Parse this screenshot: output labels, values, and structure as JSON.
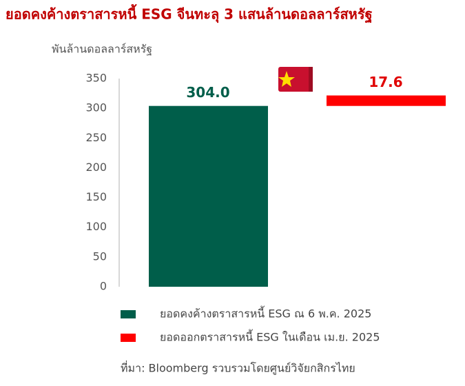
{
  "chart_data": {
    "type": "waterfall",
    "title": "ยอดคงค้างตราสารหนี้ ESG จีนทะลุ 3 แสนล้านดอลลาร์สหรัฐ",
    "y_label": "พันล้านดอลลาร์สหรัฐ",
    "categories": [
      null,
      null
    ],
    "series": [
      {
        "name": "ยอดคงค้างตราสารหนี้ ESG ณ 6 พ.ค. 2025",
        "color": "#005e4a",
        "values": [
          304.0,
          null
        ],
        "value_labels": [
          "304.0",
          null
        ]
      },
      {
        "name": "ยอดออกตราสารหนี้ ESG ในเดือน เม.ย. 2025",
        "color": "#ff0000",
        "values": [
          null,
          17.6
        ]
      }
    ],
    "ylim": [
      0,
      350
    ],
    "yticks": [
      0,
      50,
      100,
      150,
      200,
      250,
      300,
      350
    ],
    "source": "ที่มา: Bloomberg รวบรวมโดยศูนย์วิจัยกสิกรไทย"
  }
}
